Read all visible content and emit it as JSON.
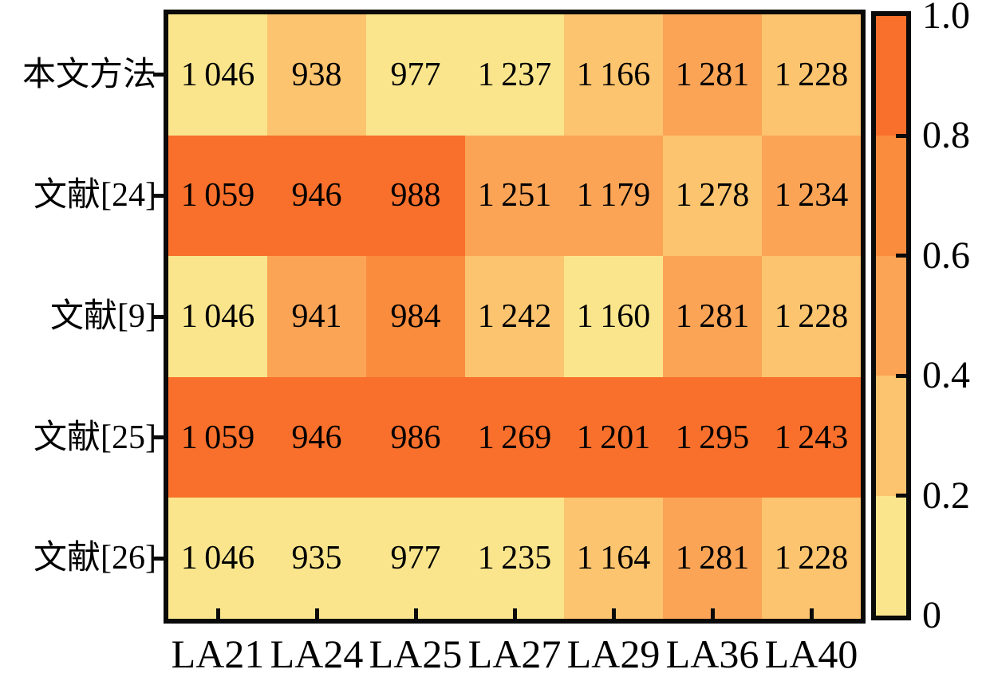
{
  "background": "#ffffff",
  "text_color": "#000000",
  "axis_color": "#0a0a0a",
  "chart_data": {
    "type": "heatmap",
    "title": "",
    "xlabel": "",
    "ylabel": "",
    "rows": [
      "本文方法",
      "文献[24]",
      "文献[9]",
      "文献[25]",
      "文献[26]"
    ],
    "columns": [
      "LA21",
      "LA24",
      "LA25",
      "LA27",
      "LA29",
      "LA36",
      "LA40"
    ],
    "values": [
      [
        1046,
        938,
        977,
        1237,
        1166,
        1281,
        1228
      ],
      [
        1059,
        946,
        988,
        1251,
        1179,
        1278,
        1234
      ],
      [
        1046,
        941,
        984,
        1242,
        1160,
        1281,
        1228
      ],
      [
        1059,
        946,
        986,
        1269,
        1201,
        1295,
        1243
      ],
      [
        1046,
        935,
        977,
        1235,
        1164,
        1281,
        1228
      ]
    ],
    "cell_levels": [
      [
        1,
        2,
        1,
        1,
        2,
        3,
        2
      ],
      [
        5,
        5,
        5,
        3,
        3,
        2,
        3
      ],
      [
        1,
        3,
        4,
        2,
        1,
        3,
        2
      ],
      [
        5,
        5,
        5,
        5,
        5,
        5,
        5
      ],
      [
        1,
        1,
        1,
        1,
        2,
        3,
        2
      ]
    ],
    "level_colors": {
      "1": "#fae58d",
      "2": "#fcc46e",
      "3": "#fba456",
      "4": "#fa8c3e",
      "5": "#f8702b"
    },
    "value_thousands_separator": "thin-space",
    "grid": false,
    "colorbar": {
      "position": "right",
      "range": [
        0,
        1
      ],
      "tick_labels": [
        "1.0",
        "0.8",
        "0.6",
        "0.4",
        "0.2",
        "0"
      ],
      "band_colors_top_to_bottom": [
        "#f8702b",
        "#fa8c3e",
        "#fba456",
        "#fcc46e",
        "#fae58d"
      ]
    }
  }
}
